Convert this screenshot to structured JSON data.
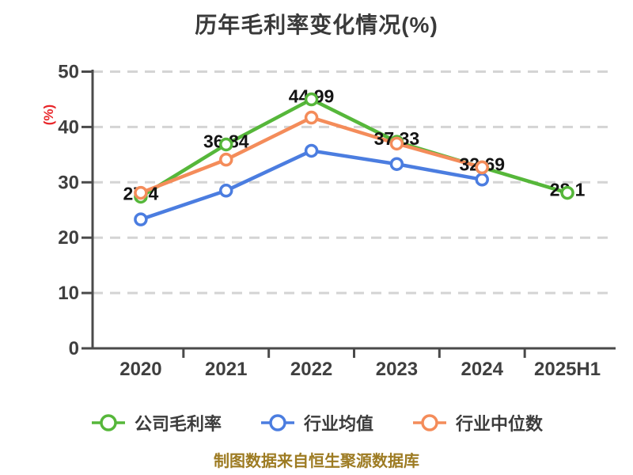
{
  "chart_data": {
    "type": "line",
    "title": "历年毛利率变化情况(%)",
    "ylabel": "(%)",
    "xlabel": "",
    "categories": [
      "2020",
      "2021",
      "2022",
      "2023",
      "2024",
      "2025H1"
    ],
    "ylim": [
      0,
      50
    ],
    "y_ticks": [
      0,
      10,
      20,
      30,
      40,
      50
    ],
    "grid": "horizontal-dashed",
    "legend_position": "bottom",
    "series": [
      {
        "name": "公司毛利率",
        "color": "#56b73a",
        "values": [
          27.4,
          36.84,
          44.99,
          37.33,
          32.69,
          28.1
        ],
        "labeled": true,
        "point_labels": [
          "27.4",
          "36.84",
          "44.99",
          "37.33",
          "32.69",
          "28.1"
        ]
      },
      {
        "name": "行业均值",
        "color": "#4b7de0",
        "values": [
          23.3,
          28.5,
          35.7,
          33.3,
          30.5,
          null
        ],
        "labeled": false,
        "point_labels": []
      },
      {
        "name": "行业中位数",
        "color": "#f48c5a",
        "values": [
          28.1,
          34.1,
          41.7,
          37.0,
          32.7,
          null
        ],
        "labeled": false,
        "point_labels": []
      }
    ]
  },
  "footer": {
    "source_note": "制图数据来自恒生聚源数据库"
  },
  "colors": {
    "title": "#3a3a3a",
    "ylabel": "#e8262a",
    "axis": "#4a4a4a",
    "tick_label": "#3f3f3f",
    "gridline": "#d4d4d4",
    "data_label": "#141414",
    "footer": "#9d7b22",
    "background": "#ffffff"
  }
}
